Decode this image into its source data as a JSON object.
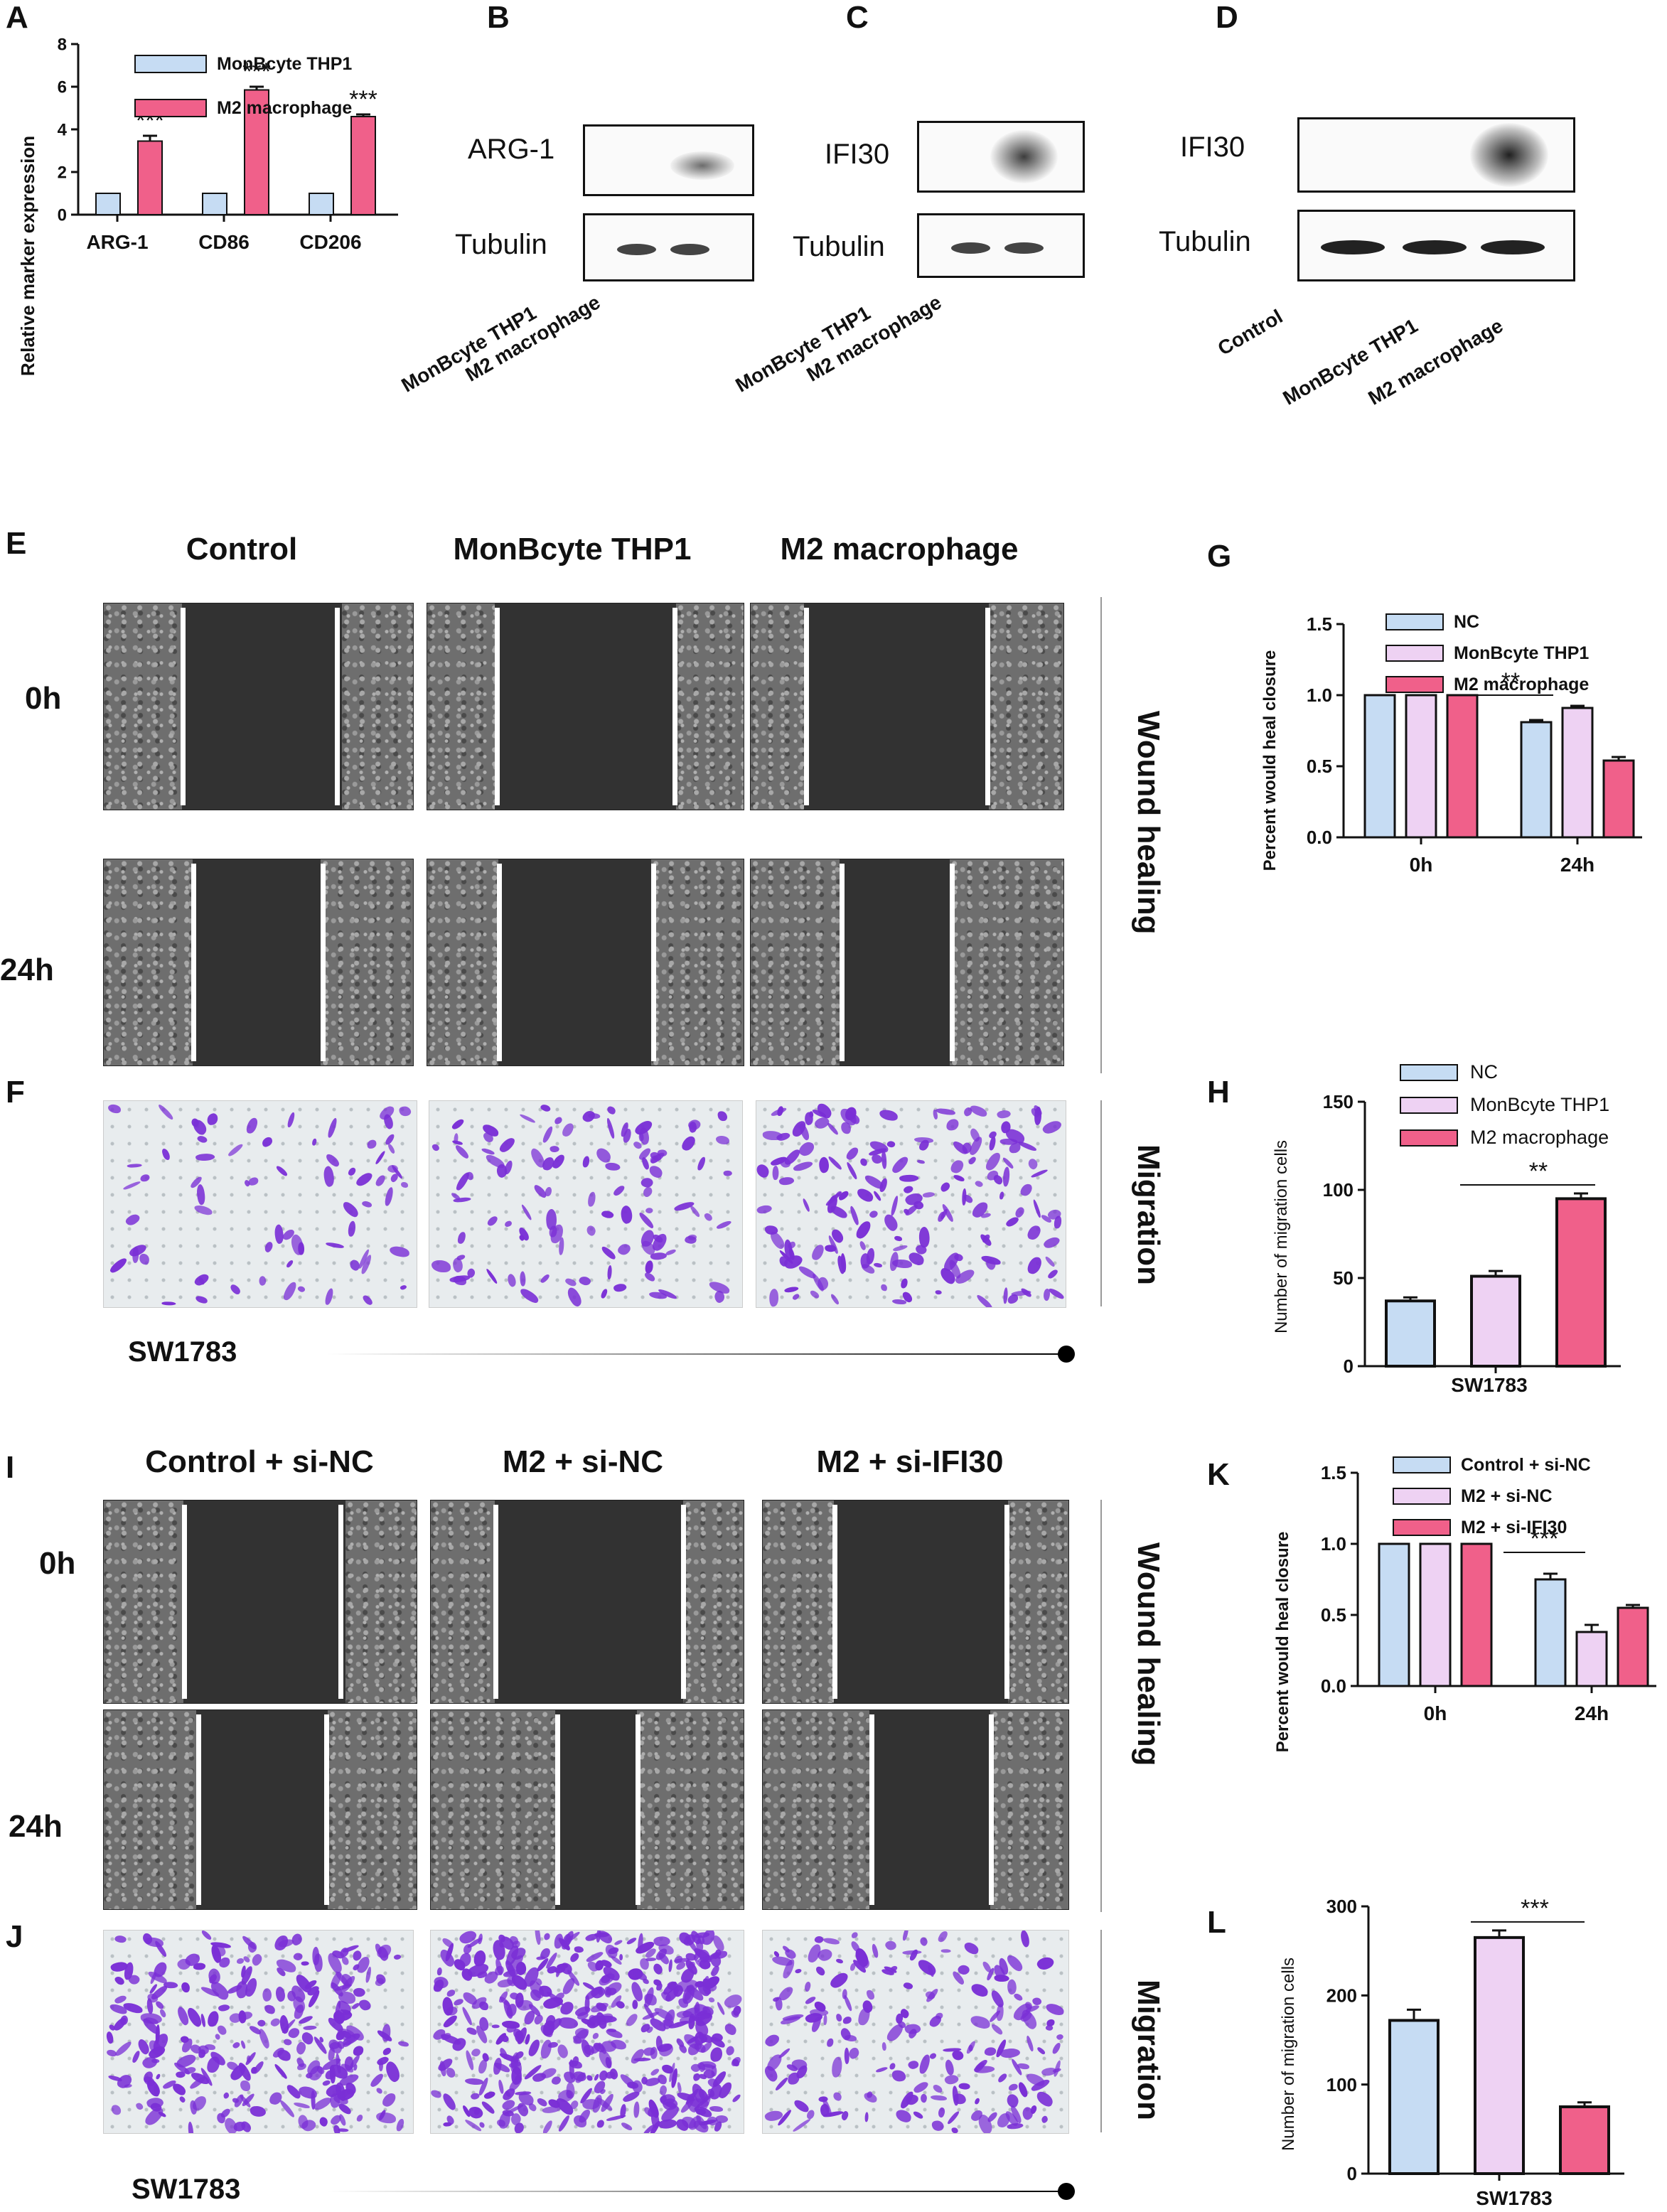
{
  "panel_letters": {
    "A": "A",
    "B": "B",
    "C": "C",
    "D": "D",
    "E": "E",
    "F": "F",
    "G": "G",
    "H": "H",
    "I": "I",
    "J": "J",
    "K": "K",
    "L": "L"
  },
  "colors": {
    "nc": "#c6dcf3",
    "monocyte": "#eed2f3",
    "m2": "#f0608a"
  },
  "blots": {
    "B": {
      "target": "ARG-1",
      "loading": "Tubulin",
      "lanes": [
        "MonBcyte THP1",
        "M2 macrophage"
      ]
    },
    "C": {
      "target": "IFI30",
      "loading": "Tubulin",
      "lanes": [
        "MonBcyte THP1",
        "M2 macrophage"
      ]
    },
    "D": {
      "target": "IFI30",
      "loading": "Tubulin",
      "lanes": [
        "Control",
        "MonBcyte THP1",
        "M2 macrophage"
      ]
    }
  },
  "section1": {
    "columns": [
      "Control",
      "MonBcyte THP1",
      "M2 macrophage"
    ],
    "rows": [
      "0h",
      "24h"
    ],
    "side_wound": "Wound healing",
    "side_migration": "Migration",
    "cell_line": "SW1783"
  },
  "section2": {
    "columns": [
      "Control + si-NC",
      "M2 + si-NC",
      "M2 + si-IFI30"
    ],
    "rows": [
      "0h",
      "24h"
    ],
    "side_wound": "Wound healing",
    "side_migration": "Migration",
    "cell_line": "SW1783"
  },
  "chart_data": [
    {
      "panel": "A",
      "type": "bar",
      "categories": [
        "ARG-1",
        "CD86",
        "CD206"
      ],
      "series": [
        {
          "name": "MonBcyte THP1",
          "values": [
            1,
            1,
            1
          ],
          "errors": [
            0,
            0,
            0
          ]
        },
        {
          "name": "M2 macrophage",
          "values": [
            3.45,
            5.85,
            4.6
          ],
          "errors": [
            0.25,
            0.15,
            0.1
          ]
        }
      ],
      "ylabel": "Relative marker expression",
      "ylim": [
        0,
        8
      ],
      "yticks": [
        "0",
        "2",
        "4",
        "6",
        "8"
      ],
      "annotations": [
        "***",
        "***",
        "***"
      ],
      "legend": "top-left"
    },
    {
      "panel": "G",
      "type": "bar",
      "categories": [
        "0h",
        "24h"
      ],
      "series": [
        {
          "name": "NC",
          "values": [
            1.0,
            0.81
          ],
          "errors": [
            0,
            0.015
          ]
        },
        {
          "name": "MonBcyte THP1",
          "values": [
            1.0,
            0.91
          ],
          "errors": [
            0,
            0.015
          ]
        },
        {
          "name": "M2 macrophage",
          "values": [
            1.0,
            0.54
          ],
          "errors": [
            0,
            0.025
          ]
        }
      ],
      "ylabel": "Percent would heal closure",
      "ylim": [
        0,
        1.5
      ],
      "yticks": [
        "0.0",
        "0.5",
        "1.0",
        "1.5"
      ],
      "annotations": [
        "**"
      ],
      "legend": "top-right"
    },
    {
      "panel": "H",
      "type": "bar",
      "categories": [
        "NC",
        "MonBcyte THP1",
        "M2 macrophage"
      ],
      "values": [
        37,
        51,
        95
      ],
      "errors": [
        2,
        3,
        3
      ],
      "xlabel": "SW1783",
      "ylabel": "Number of migration cells",
      "ylim": [
        0,
        150
      ],
      "yticks": [
        "0",
        "50",
        "100",
        "150"
      ],
      "annotations": [
        "**"
      ],
      "legend": "top-right"
    },
    {
      "panel": "K",
      "type": "bar",
      "categories": [
        "0h",
        "24h"
      ],
      "series": [
        {
          "name": "Control + si-NC",
          "values": [
            1.0,
            0.75
          ],
          "errors": [
            0,
            0.04
          ]
        },
        {
          "name": "M2 + si-NC",
          "values": [
            1.0,
            0.38
          ],
          "errors": [
            0,
            0.05
          ]
        },
        {
          "name": "M2 + si-IFI30",
          "values": [
            1.0,
            0.55
          ],
          "errors": [
            0,
            0.02
          ]
        }
      ],
      "ylabel": "Percent would heal closure",
      "ylim": [
        0,
        1.5
      ],
      "yticks": [
        "0.0",
        "0.5",
        "1.0",
        "1.5"
      ],
      "annotations": [
        "***"
      ],
      "legend": "top-right"
    },
    {
      "panel": "L",
      "type": "bar",
      "categories": [
        "Control + si-NC",
        "M2 + si-NC",
        "M2 + si-IFI30"
      ],
      "values": [
        172,
        265,
        75
      ],
      "errors": [
        12,
        8,
        5
      ],
      "xlabel": "SW1783",
      "ylabel": "Number of migration cells",
      "ylim": [
        0,
        300
      ],
      "yticks": [
        "0",
        "100",
        "200",
        "300"
      ],
      "annotations": [
        "***"
      ]
    }
  ]
}
